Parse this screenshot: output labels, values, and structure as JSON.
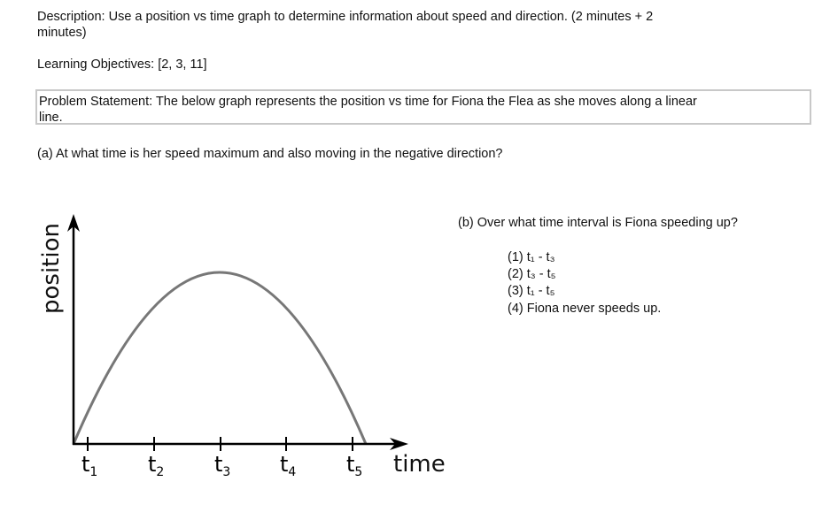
{
  "description": {
    "label": "Description:",
    "text": "Use a position vs time graph to determine information about speed and direction.  (2 minutes + 2",
    "text_cont": "minutes)"
  },
  "learning_objectives": {
    "label": "Learning Objectives:",
    "text": "[2, 3, 11]"
  },
  "problem_statement": {
    "label": "Problem Statement:",
    "text": "The below graph represents the position vs time for Fiona the Flea as she moves along a linear",
    "text_cont": "line."
  },
  "question_a": "(a)  At what time is her speed maximum and also moving in the negative direction?",
  "question_b": {
    "prompt": "(b)  Over what time interval is Fiona speeding up?",
    "options": [
      "(1)  t₁ - t₃",
      "(2)  t₃ - t₅",
      "(3)  t₁ - t₅",
      "(4)  Fiona never speeds up."
    ]
  },
  "graph": {
    "y_axis_label": "position",
    "x_axis_label": "time",
    "ticks": [
      {
        "t": "t",
        "sub": "1"
      },
      {
        "t": "t",
        "sub": "2"
      },
      {
        "t": "t",
        "sub": "3"
      },
      {
        "t": "t",
        "sub": "4"
      },
      {
        "t": "t",
        "sub": "5"
      }
    ],
    "curve_color": "#777777"
  }
}
